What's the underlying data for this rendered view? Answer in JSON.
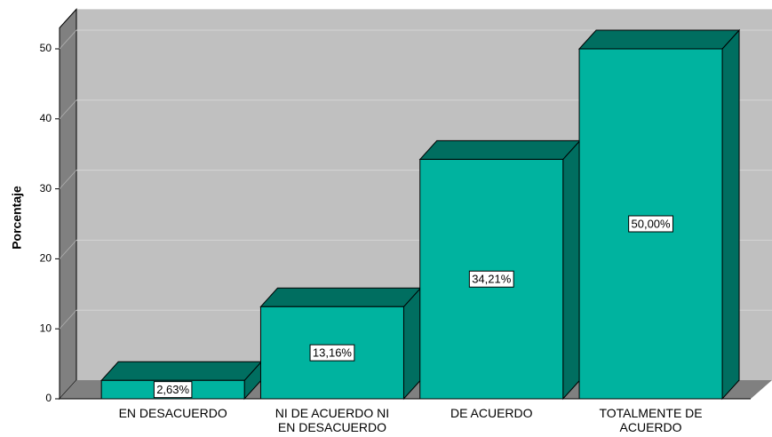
{
  "chart_data": {
    "type": "bar3d",
    "y_label": "Porcentaje",
    "categories": [
      "EN DESACUERDO",
      "NI DE ACUERDO NI EN DESACUERDO",
      "DE ACUERDO",
      "TOTALMENTE DE ACUERDO"
    ],
    "values": [
      2.63,
      13.16,
      34.21,
      50.0
    ],
    "value_labels": [
      "2,63%",
      "13,16%",
      "34,21%",
      "50,00%"
    ],
    "color": "#00b39f",
    "ylim": [
      0,
      53
    ],
    "yticks": [
      0,
      10,
      20,
      30,
      40,
      50
    ],
    "grid": true
  }
}
